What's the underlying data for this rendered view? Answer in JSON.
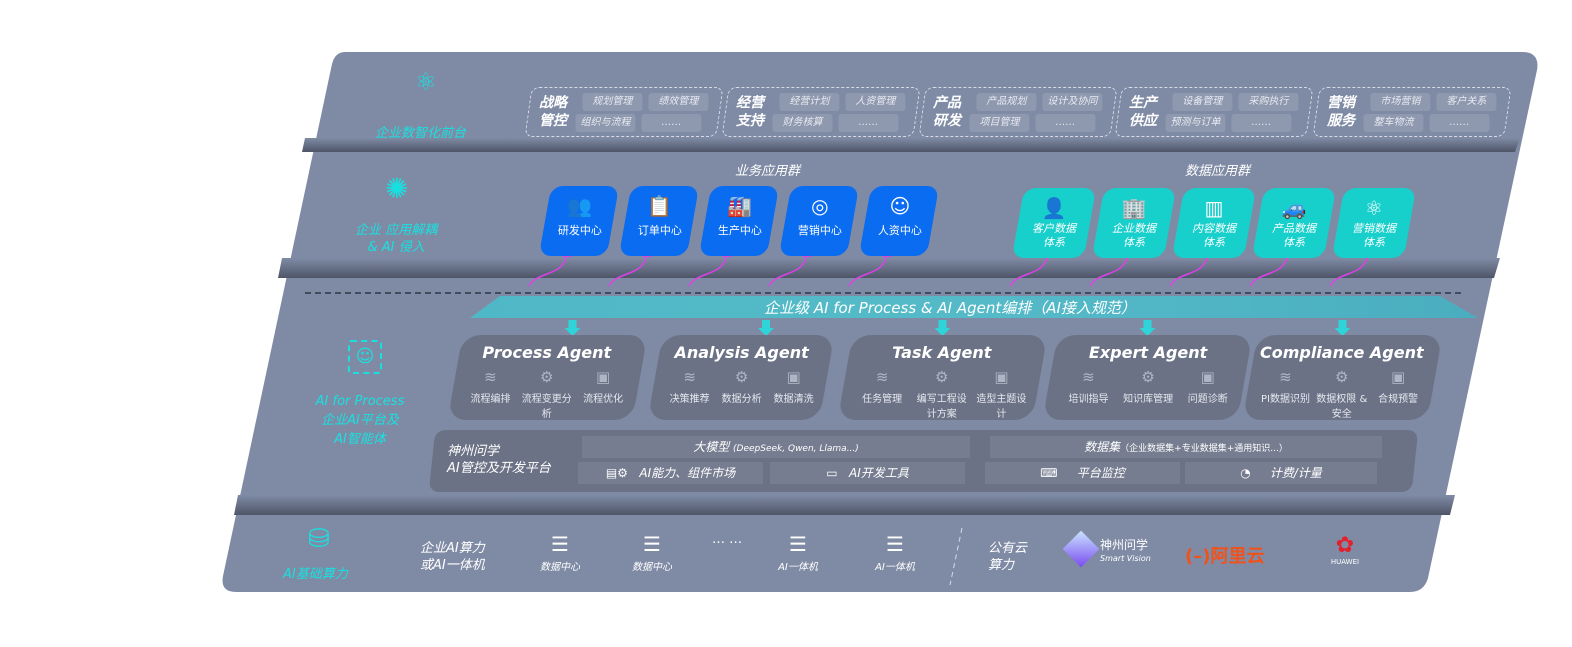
{
  "layers": {
    "front": "企业数智化前台",
    "app": [
      "企业 应用解耦",
      "& AI 侵入"
    ],
    "ai": [
      "AI for Process",
      "企业AI平台及",
      "AI智能体"
    ],
    "infra": "AI基础算力"
  },
  "front_groups": [
    {
      "title": [
        "战略",
        "管控"
      ],
      "chips": [
        "规划管理",
        "绩效管理",
        "组织与流程",
        "……"
      ]
    },
    {
      "title": [
        "经营",
        "支持"
      ],
      "chips": [
        "经营计划",
        "人资管理",
        "财务核算",
        "……"
      ]
    },
    {
      "title": [
        "产品",
        "研发"
      ],
      "chips": [
        "产品规划",
        "设计及协同",
        "项目管理",
        "……"
      ]
    },
    {
      "title": [
        "生产",
        "供应"
      ],
      "chips": [
        "设备管理",
        "采购执行",
        "预测与订单",
        "……"
      ]
    },
    {
      "title": [
        "营销",
        "服务"
      ],
      "chips": [
        "市场营销",
        "客户关系",
        "整车物流",
        "……"
      ]
    }
  ],
  "business_apps": {
    "title": "业务应用群",
    "items": [
      {
        "label": "研发中心",
        "icon": "users-icon"
      },
      {
        "label": "订单中心",
        "icon": "clipboard-icon"
      },
      {
        "label": "生产中心",
        "icon": "factory-icon"
      },
      {
        "label": "营销中心",
        "icon": "target-icon"
      },
      {
        "label": "人资中心",
        "icon": "person-icon"
      }
    ]
  },
  "data_apps": {
    "title": "数据应用群",
    "items": [
      {
        "label": [
          "客户数据",
          "体系"
        ],
        "icon": "user-icon"
      },
      {
        "label": [
          "企业数据",
          "体系"
        ],
        "icon": "building-icon"
      },
      {
        "label": [
          "内容数据",
          "体系"
        ],
        "icon": "books-icon"
      },
      {
        "label": [
          "产品数据",
          "体系"
        ],
        "icon": "car-icon"
      },
      {
        "label": [
          "营销数据",
          "体系"
        ],
        "icon": "atom-icon"
      }
    ]
  },
  "orchestration": "企业级 AI for Process & AI Agent编排（AI接入规范）",
  "agents": [
    {
      "name": "Process Agent",
      "items": [
        "流程编排",
        "流程变更分析",
        "流程优化"
      ]
    },
    {
      "name": "Analysis Agent",
      "items": [
        "决策推荐",
        "数据分析",
        "数据清洗"
      ]
    },
    {
      "name": "Task Agent",
      "items": [
        "任务管理",
        "编写工程设计方案",
        "造型主题设计"
      ]
    },
    {
      "name": "Expert Agent",
      "items": [
        "培训指导",
        "知识库管理",
        "问题诊断"
      ]
    },
    {
      "name": "Compliance Agent",
      "items": [
        "PI数据识别",
        "数据权限 & 安全",
        "合规预警"
      ]
    }
  ],
  "platform": {
    "title": [
      "神州问学",
      "AI管控及开发平台"
    ],
    "model": "大模型",
    "model_note": "(DeepSeek, Qwen, Llama...)",
    "dataset": "数据集",
    "dataset_note": "（企业数据集+专业数据集+通用知识...）",
    "market": "AI能力、组件市场",
    "devtools": "AI开发工具",
    "monitor": "平台监控",
    "billing": "计费/计量"
  },
  "infra": {
    "private_label": [
      "企业AI算力",
      "或AI一体机"
    ],
    "servers": [
      "数据中心",
      "数据中心",
      "AI一体机",
      "AI一体机"
    ],
    "ellipsis": "… …",
    "public_label": [
      "公有云",
      "算力"
    ],
    "vendors": {
      "shenzhou": "神州问学",
      "shenzhou_sub": "Smart Vision",
      "aliyun": "阿里云",
      "huawei": "HUAWEI"
    }
  },
  "colors": {
    "panel": "#7f8ba5",
    "blue": "#0a6cf0",
    "teal": "#17cfcb",
    "accent": "#19e0e0",
    "arrow": "#e040e8",
    "aliyun": "#f0521c",
    "huawei": "#e3202c"
  }
}
